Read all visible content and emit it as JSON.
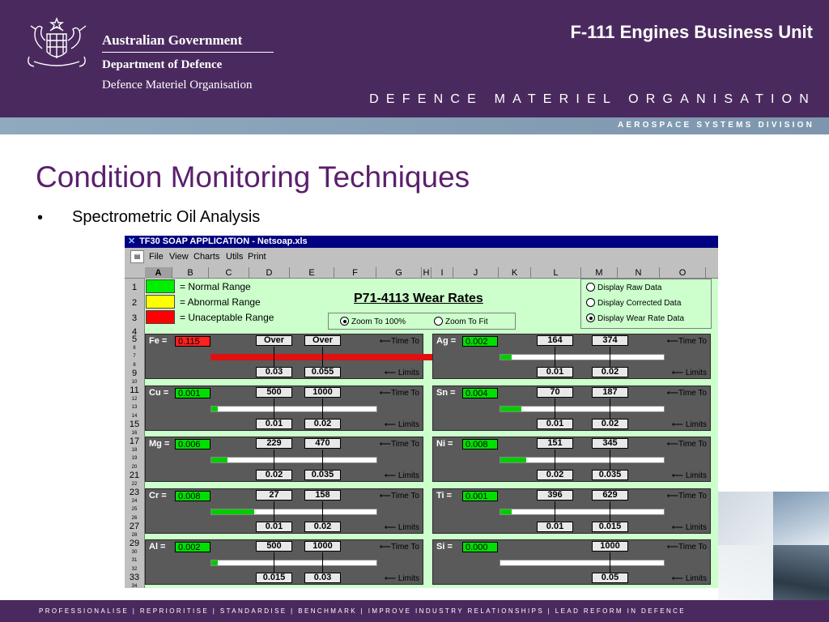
{
  "header": {
    "gov_line1": "Australian Government",
    "gov_line2": "Department of Defence",
    "gov_line3": "Defence Materiel Organisation",
    "unit_title": "F-111 Engines Business Unit",
    "dmo_spaced": "DEFENCE MATERIEL ORGANISATION",
    "division": "AEROSPACE SYSTEMS DIVISION"
  },
  "slide": {
    "title": "Condition Monitoring Techniques",
    "bullet_symbol": "•",
    "bullet": "Spectrometric Oil Analysis"
  },
  "footer": {
    "text": "PROFESSIONALISE | REPRIORITISE | STANDARDISE | BENCHMARK | IMPROVE INDUSTRY RELATIONSHIPS | LEAD REFORM IN DEFENCE"
  },
  "app": {
    "title": "TF30 SOAP APPLICATION - Netsoap.xls",
    "menu": [
      "File",
      "View",
      "Charts",
      "Utils",
      "Print"
    ],
    "columns": [
      "A",
      "B",
      "C",
      "D",
      "E",
      "F",
      "G",
      "H",
      "I",
      "J",
      "K",
      "L",
      "M",
      "N",
      "O"
    ],
    "rows": [
      "1",
      "2",
      "3",
      "4",
      "5",
      "6",
      "7",
      "8",
      "9",
      "10",
      "11",
      "12",
      "13",
      "14",
      "15",
      "16",
      "17",
      "18",
      "19",
      "20",
      "21",
      "22",
      "23",
      "24",
      "25",
      "26",
      "27",
      "28",
      "29",
      "30",
      "31",
      "32",
      "33",
      "34"
    ],
    "legend": [
      {
        "color": "#00ee00",
        "text": "= Normal Range"
      },
      {
        "color": "#ffff00",
        "text": "= Abnormal Range"
      },
      {
        "color": "#ff0000",
        "text": "= Unaceptable Range"
      }
    ],
    "sheet_title": "P71-4113 Wear Rates",
    "zoom_options": [
      {
        "label": "Zoom To 100%",
        "selected": true
      },
      {
        "label": "Zoom To Fit",
        "selected": false
      }
    ],
    "display_options": [
      {
        "label": "Display Raw Data",
        "selected": false
      },
      {
        "label": "Display Corrected Data",
        "selected": false
      },
      {
        "label": "Display Wear Rate Data",
        "selected": true
      }
    ],
    "time_to_label": "Time To",
    "limits_label": "Limits",
    "elements": [
      {
        "symbol": "Fe =",
        "value": "0.115",
        "status": "red",
        "time1": "Over",
        "time2": "Over",
        "limit1": "0.03",
        "limit2": "0.055",
        "fill": 1.0
      },
      {
        "symbol": "Ag =",
        "value": "0.002",
        "status": "green",
        "time1": "164",
        "time2": "374",
        "limit1": "0.01",
        "limit2": "0.02",
        "fill": 0.07
      },
      {
        "symbol": "Cu =",
        "value": "0.001",
        "status": "green",
        "time1": "500",
        "time2": "1000",
        "limit1": "0.01",
        "limit2": "0.02",
        "fill": 0.04
      },
      {
        "symbol": "Sn =",
        "value": "0.004",
        "status": "green",
        "time1": "70",
        "time2": "187",
        "limit1": "0.01",
        "limit2": "0.02",
        "fill": 0.13
      },
      {
        "symbol": "Mg =",
        "value": "0.006",
        "status": "green",
        "time1": "229",
        "time2": "470",
        "limit1": "0.02",
        "limit2": "0.035",
        "fill": 0.1
      },
      {
        "symbol": "Ni =",
        "value": "0.008",
        "status": "green",
        "time1": "151",
        "time2": "345",
        "limit1": "0.02",
        "limit2": "0.035",
        "fill": 0.16
      },
      {
        "symbol": "Cr =",
        "value": "0.008",
        "status": "green",
        "time1": "27",
        "time2": "158",
        "limit1": "0.01",
        "limit2": "0.02",
        "fill": 0.26
      },
      {
        "symbol": "Ti =",
        "value": "0.001",
        "status": "green",
        "time1": "396",
        "time2": "629",
        "limit1": "0.01",
        "limit2": "0.015",
        "fill": 0.07
      },
      {
        "symbol": "Al =",
        "value": "0.002",
        "status": "green",
        "time1": "500",
        "time2": "1000",
        "limit1": "0.015",
        "limit2": "0.03",
        "fill": 0.04
      },
      {
        "symbol": "Si =",
        "value": "0.000",
        "status": "green",
        "time1": "",
        "time2": "1000",
        "limit1": "",
        "limit2": "0.05",
        "fill": 0.0
      }
    ]
  }
}
